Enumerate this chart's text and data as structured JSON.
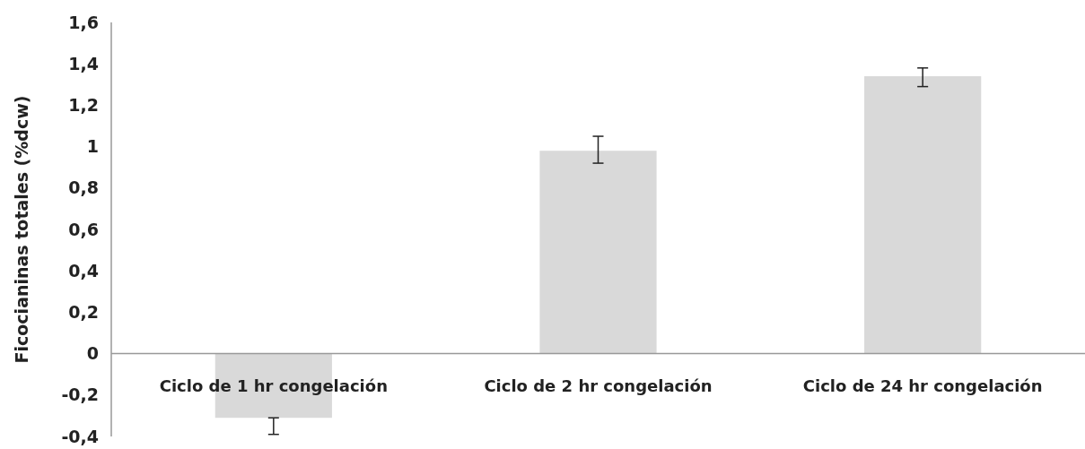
{
  "chart_data": {
    "type": "bar",
    "ylabel": "Ficocianinas totales (%dcw)",
    "categories": [
      "Ciclo de 1 hr congelación",
      "Ciclo de 2 hr congelación",
      "Ciclo de 24 hr congelación"
    ],
    "values": [
      -0.31,
      0.98,
      1.34
    ],
    "errors": [
      [
        -0.39,
        -0.31
      ],
      [
        0.92,
        1.05
      ],
      [
        1.29,
        1.38
      ]
    ],
    "color": "#d9d9d9",
    "ylim": [
      -0.4,
      1.6
    ],
    "yticks": [
      {
        "value": -0.4,
        "label": "-0,4"
      },
      {
        "value": -0.2,
        "label": "-0,2"
      },
      0,
      {
        "value": 0.2,
        "label": "0,2"
      },
      {
        "value": 0.4,
        "label": "0,4"
      },
      {
        "value": 0.6,
        "label": "0,6"
      },
      {
        "value": 0.8,
        "label": "0,8"
      },
      1,
      {
        "value": 1.2,
        "label": "1,2"
      },
      {
        "value": 1.4,
        "label": "1,4"
      },
      {
        "value": 1.6,
        "label": "1,6"
      }
    ],
    "grid": false
  }
}
